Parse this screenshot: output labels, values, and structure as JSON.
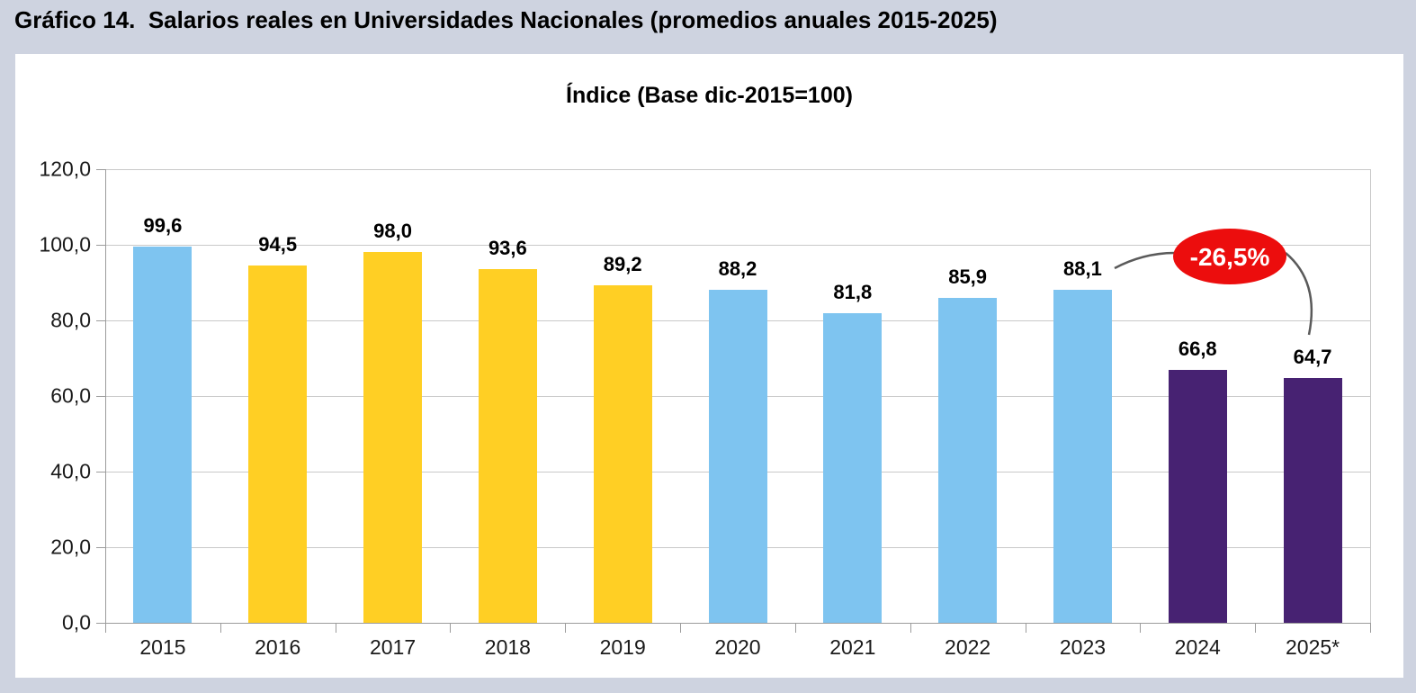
{
  "header": {
    "title": "Gráfico 14.  Salarios reales en Universidades Nacionales (promedios anuales 2015-2025)"
  },
  "chart_data": {
    "type": "bar",
    "title": "Índice (Base dic-2015=100)",
    "categories": [
      "2015",
      "2016",
      "2017",
      "2018",
      "2019",
      "2020",
      "2021",
      "2022",
      "2023",
      "2024",
      "2025*"
    ],
    "values": [
      99.6,
      94.5,
      98.0,
      93.6,
      89.2,
      88.2,
      81.8,
      85.9,
      88.1,
      66.8,
      64.7
    ],
    "value_labels": [
      "99,6",
      "94,5",
      "98,0",
      "93,6",
      "89,2",
      "88,2",
      "81,8",
      "85,9",
      "88,1",
      "66,8",
      "64,7"
    ],
    "bar_colors": [
      "#7EC4F0",
      "#FFCF24",
      "#FFCF24",
      "#FFCF24",
      "#FFCF24",
      "#7EC4F0",
      "#7EC4F0",
      "#7EC4F0",
      "#7EC4F0",
      "#472272",
      "#472272"
    ],
    "color_legend": {
      "blue": "#7EC4F0",
      "yellow": "#FFCF24",
      "purple": "#472272"
    },
    "xlabel": "",
    "ylabel": "",
    "ylim": [
      0,
      120
    ],
    "ytick_step": 20,
    "ytick_labels": [
      "0,0",
      "20,0",
      "40,0",
      "60,0",
      "80,0",
      "100,0",
      "120,0"
    ],
    "grid": true,
    "legend": "none",
    "annotation": {
      "text": "-26,5%",
      "fill": "#EC0D0D",
      "text_color": "#FFFFFF",
      "connector_color": "#5A5A5A",
      "points_from": "88,1 (2023)",
      "points_to": "64,7 (2025*)"
    }
  }
}
